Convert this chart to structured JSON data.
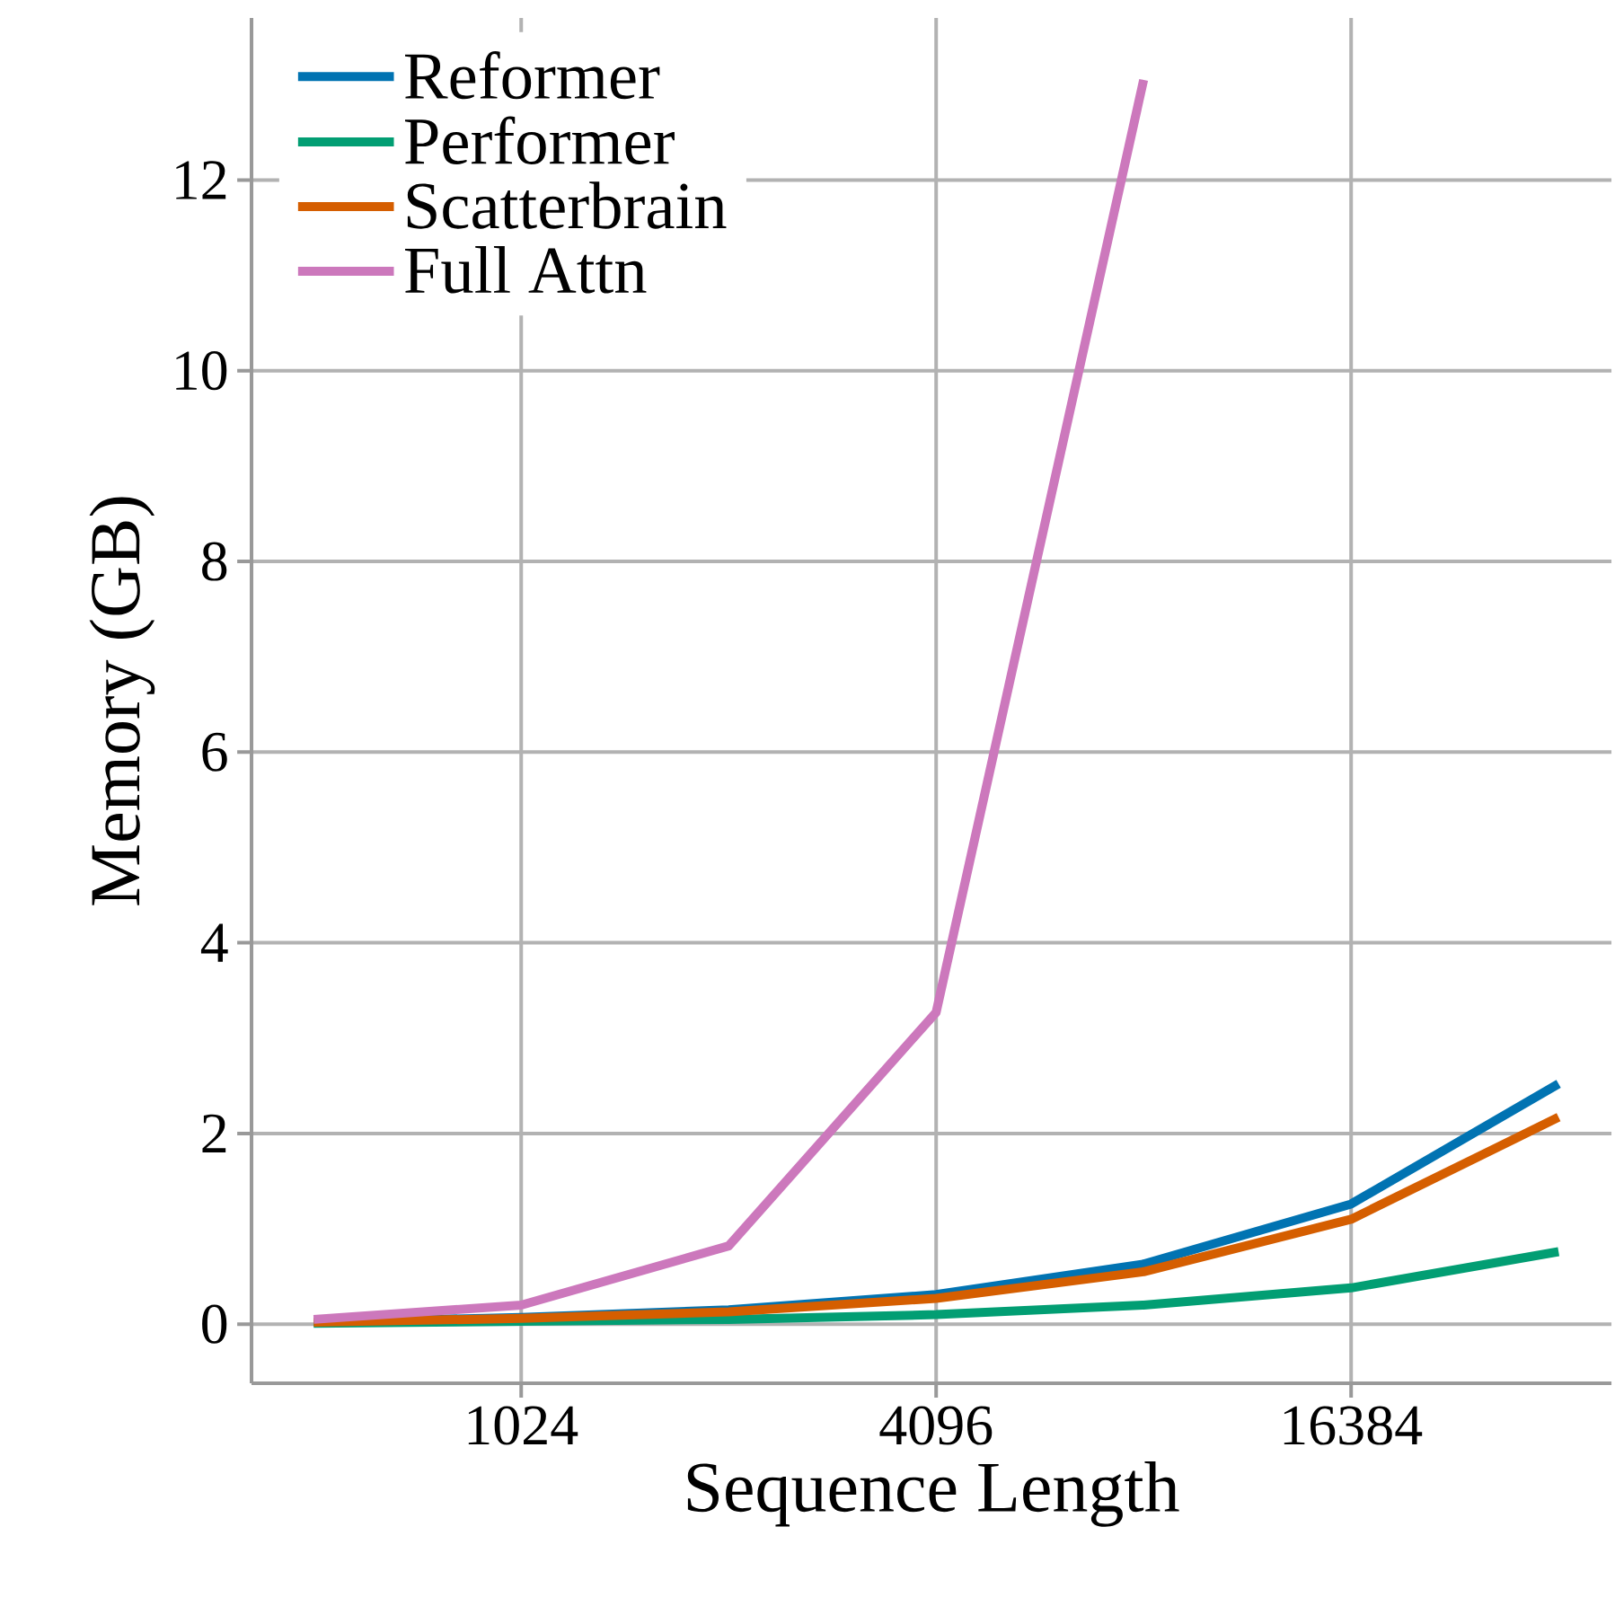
{
  "chart_data": {
    "type": "line",
    "xlabel": "Sequence Length",
    "ylabel": "Memory (GB)",
    "x": [
      512,
      1024,
      2048,
      4096,
      8192,
      16384,
      32768
    ],
    "series": [
      {
        "name": "Reformer",
        "color": "#0173b2",
        "values": [
          0.02,
          0.07,
          0.15,
          0.31,
          0.63,
          1.26,
          2.52
        ]
      },
      {
        "name": "Performer",
        "color": "#029e73",
        "values": [
          0.01,
          0.03,
          0.05,
          0.1,
          0.2,
          0.38,
          0.76
        ]
      },
      {
        "name": "Scatterbrain",
        "color": "#d55e00",
        "values": [
          0.02,
          0.06,
          0.13,
          0.27,
          0.55,
          1.1,
          2.17
        ]
      },
      {
        "name": "Full Attn",
        "color": "#cc78bc",
        "values": [
          0.05,
          0.2,
          0.82,
          3.27,
          13.05,
          null,
          null
        ]
      }
    ],
    "log": "x",
    "xlim": [
      416,
      39100
    ],
    "ylim": [
      -0.62,
      13.7
    ],
    "xticks": [
      1024,
      4096,
      16384
    ],
    "yticks": [
      0,
      2,
      4,
      6,
      8,
      10,
      12
    ],
    "grid": true,
    "legend": "top left",
    "marker": "none",
    "line_style": "solid"
  }
}
